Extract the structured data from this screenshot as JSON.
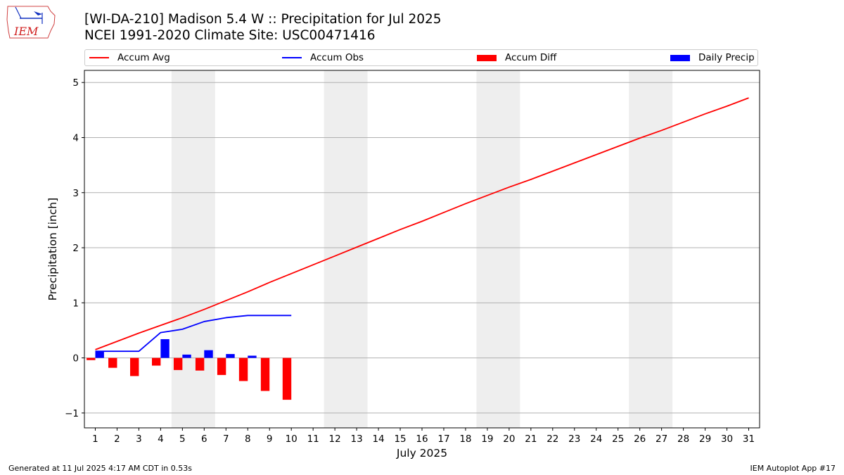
{
  "header": {
    "logo_text": "IEM",
    "title_line1": "[WI-DA-210] Madison 5.4 W :: Precipitation for Jul 2025",
    "title_line2": "NCEI 1991-2020 Climate Site: USC00471416"
  },
  "footer": {
    "left": "Generated at 11 Jul 2025 4:17 AM CDT in 0.53s",
    "right": "IEM Autoplot App #17"
  },
  "colors": {
    "accum_avg": "#ff0000",
    "accum_obs": "#0000ff",
    "accum_diff": "#ff0000",
    "daily_precip": "#0000ff",
    "weekend_shade": "#eeeeee",
    "grid": "#b0b0b0"
  },
  "chart_data": {
    "type": "bar",
    "xlabel": "July 2025",
    "ylabel": "Precipitation [inch]",
    "xlim": [
      0.5,
      31.5
    ],
    "ylim": [
      -1.27,
      5.22
    ],
    "yticks": [
      -1,
      0,
      1,
      2,
      3,
      4,
      5
    ],
    "ytick_labels": [
      "−1",
      "0",
      "1",
      "2",
      "3",
      "4",
      "5"
    ],
    "days": [
      1,
      2,
      3,
      4,
      5,
      6,
      7,
      8,
      9,
      10,
      11,
      12,
      13,
      14,
      15,
      16,
      17,
      18,
      19,
      20,
      21,
      22,
      23,
      24,
      25,
      26,
      27,
      28,
      29,
      30,
      31
    ],
    "grid": "horizontal",
    "legend_position": "top",
    "weekend_spans": [
      [
        5,
        6
      ],
      [
        12,
        13
      ],
      [
        19,
        20
      ],
      [
        26,
        27
      ]
    ],
    "series": [
      {
        "name": "Accum Avg",
        "kind": "line",
        "color": "#ff0000",
        "values": [
          0.15,
          0.3,
          0.45,
          0.59,
          0.73,
          0.88,
          1.04,
          1.2,
          1.37,
          1.53,
          1.69,
          1.85,
          2.01,
          2.17,
          2.33,
          2.48,
          2.64,
          2.8,
          2.95,
          3.1,
          3.24,
          3.39,
          3.54,
          3.69,
          3.84,
          3.99,
          4.13,
          4.28,
          4.43,
          4.57,
          4.72
        ]
      },
      {
        "name": "Accum Obs",
        "kind": "line",
        "color": "#0000ff",
        "values": [
          0.12,
          0.12,
          0.12,
          0.46,
          0.52,
          0.66,
          0.73,
          0.77,
          0.77,
          0.77
        ]
      },
      {
        "name": "Accum Diff",
        "kind": "bar",
        "color": "#ff0000",
        "values": [
          -0.04,
          -0.18,
          -0.33,
          -0.14,
          -0.22,
          -0.23,
          -0.31,
          -0.42,
          -0.6,
          -0.76
        ]
      },
      {
        "name": "Daily Precip",
        "kind": "bar",
        "color": "#0000ff",
        "values": [
          0.12,
          0,
          0,
          0.34,
          0.06,
          0.14,
          0.07,
          0.04,
          0,
          0
        ]
      }
    ]
  }
}
